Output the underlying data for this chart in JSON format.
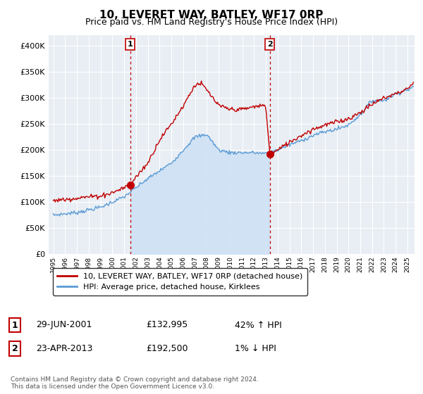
{
  "title": "10, LEVERET WAY, BATLEY, WF17 0RP",
  "subtitle": "Price paid vs. HM Land Registry's House Price Index (HPI)",
  "legend_line1": "10, LEVERET WAY, BATLEY, WF17 0RP (detached house)",
  "legend_line2": "HPI: Average price, detached house, Kirklees",
  "marker1_date": "29-JUN-2001",
  "marker1_price": 132995,
  "marker1_label": "42% ↑ HPI",
  "marker2_date": "23-APR-2013",
  "marker2_price": 192500,
  "marker2_label": "1% ↓ HPI",
  "footnote": "Contains HM Land Registry data © Crown copyright and database right 2024.\nThis data is licensed under the Open Government Licence v3.0.",
  "hpi_color": "#5b9bd5",
  "hpi_fill_color": "#cce0f5",
  "price_color": "#c00000",
  "marker_line_color": "#c00000",
  "ylim": [
    0,
    420000
  ],
  "yticks": [
    0,
    50000,
    100000,
    150000,
    200000,
    250000,
    300000,
    350000,
    400000
  ],
  "background_color": "#e8eef4",
  "marker1_x": 2001.5,
  "marker2_x": 2013.333
}
